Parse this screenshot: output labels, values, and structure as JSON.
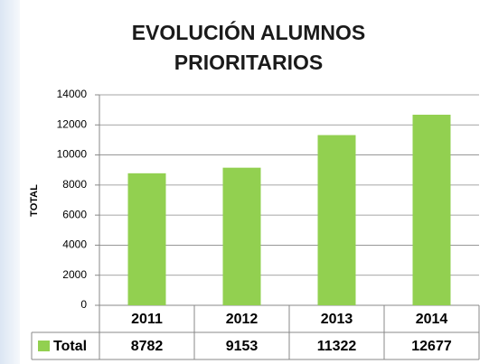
{
  "chart_data": {
    "type": "bar",
    "title": "EVOLUCIÓN ALUMNOS PRIORITARIOS",
    "y_label": "TOTAL",
    "categories": [
      "2011",
      "2012",
      "2013",
      "2014"
    ],
    "series": [
      {
        "name": "Total",
        "color": "#92d050",
        "values": [
          8782,
          9153,
          11322,
          12677
        ]
      }
    ],
    "ylim": [
      0,
      14000
    ],
    "yticks": [
      0,
      2000,
      4000,
      6000,
      8000,
      10000,
      12000,
      14000
    ],
    "grid": true
  }
}
